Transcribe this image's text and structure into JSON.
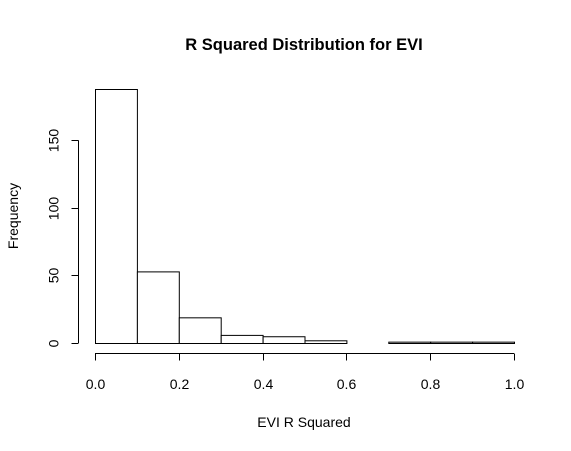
{
  "chart_data": {
    "type": "bar",
    "title": "R Squared Distribution for EVI",
    "xlabel": "EVI R Squared",
    "ylabel": "Frequency",
    "bin_edges": [
      0.0,
      0.1,
      0.2,
      0.3,
      0.4,
      0.5,
      0.6,
      0.7,
      0.8,
      0.9,
      1.0
    ],
    "values": [
      188,
      53,
      19,
      6,
      5,
      2,
      0,
      1,
      1,
      1
    ],
    "xlim": [
      0.0,
      1.0
    ],
    "ylim": [
      0,
      188
    ],
    "x_ticks": [
      "0.0",
      "0.2",
      "0.4",
      "0.6",
      "0.8",
      "1.0"
    ],
    "y_ticks": [
      "0",
      "50",
      "100",
      "150"
    ],
    "grid": false,
    "legend": "none"
  }
}
